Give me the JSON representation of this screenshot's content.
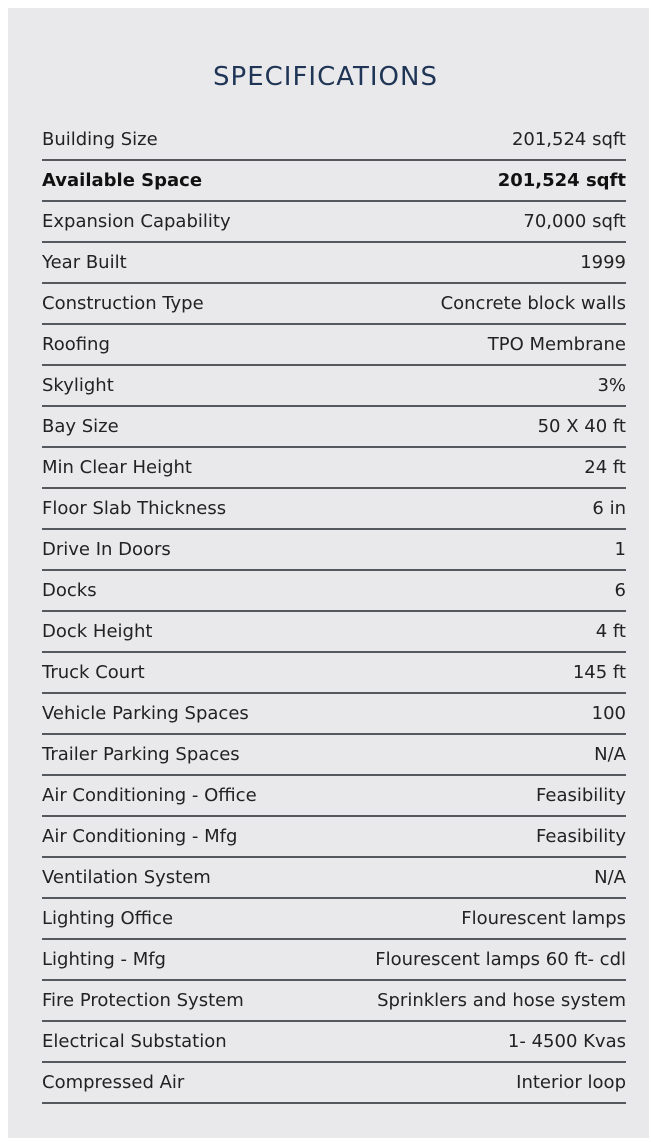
{
  "title": "SPECIFICATIONS",
  "specs": [
    {
      "label": "Building Size",
      "value": "201,524 sqft"
    },
    {
      "label": "Available Space",
      "value": "201,524 sqft"
    },
    {
      "label": "Expansion Capability",
      "value": "70,000 sqft"
    },
    {
      "label": "Year Built",
      "value": "1999"
    },
    {
      "label": "Construction Type",
      "value": "Concrete block walls"
    },
    {
      "label": "Roofing",
      "value": "TPO Membrane"
    },
    {
      "label": "Skylight",
      "value": "3%"
    },
    {
      "label": "Bay Size",
      "value": "50 X 40 ft"
    },
    {
      "label": "Min Clear Height",
      "value": "24 ft"
    },
    {
      "label": "Floor Slab Thickness",
      "value": "6 in"
    },
    {
      "label": "Drive In Doors",
      "value": "1"
    },
    {
      "label": "Docks",
      "value": "6"
    },
    {
      "label": "Dock Height",
      "value": "4 ft"
    },
    {
      "label": "Truck Court",
      "value": "145 ft"
    },
    {
      "label": "Vehicle Parking Spaces",
      "value": "100"
    },
    {
      "label": "Trailer Parking Spaces",
      "value": "N/A"
    },
    {
      "label": "Air Conditioning - Office",
      "value": "Feasibility"
    },
    {
      "label": "Air Conditioning - Mfg",
      "value": "Feasibility"
    },
    {
      "label": "Ventilation System",
      "value": "N/A"
    },
    {
      "label": "Lighting Office",
      "value": "Flourescent lamps"
    },
    {
      "label": "Lighting - Mfg",
      "value": "Flourescent lamps 60 ft- cdl"
    },
    {
      "label": "Fire Protection System",
      "value": "Sprinklers and hose system"
    },
    {
      "label": "Electrical Substation",
      "value": "1- 4500 Kvas"
    },
    {
      "label": "Compressed Air",
      "value": "Interior loop"
    }
  ]
}
